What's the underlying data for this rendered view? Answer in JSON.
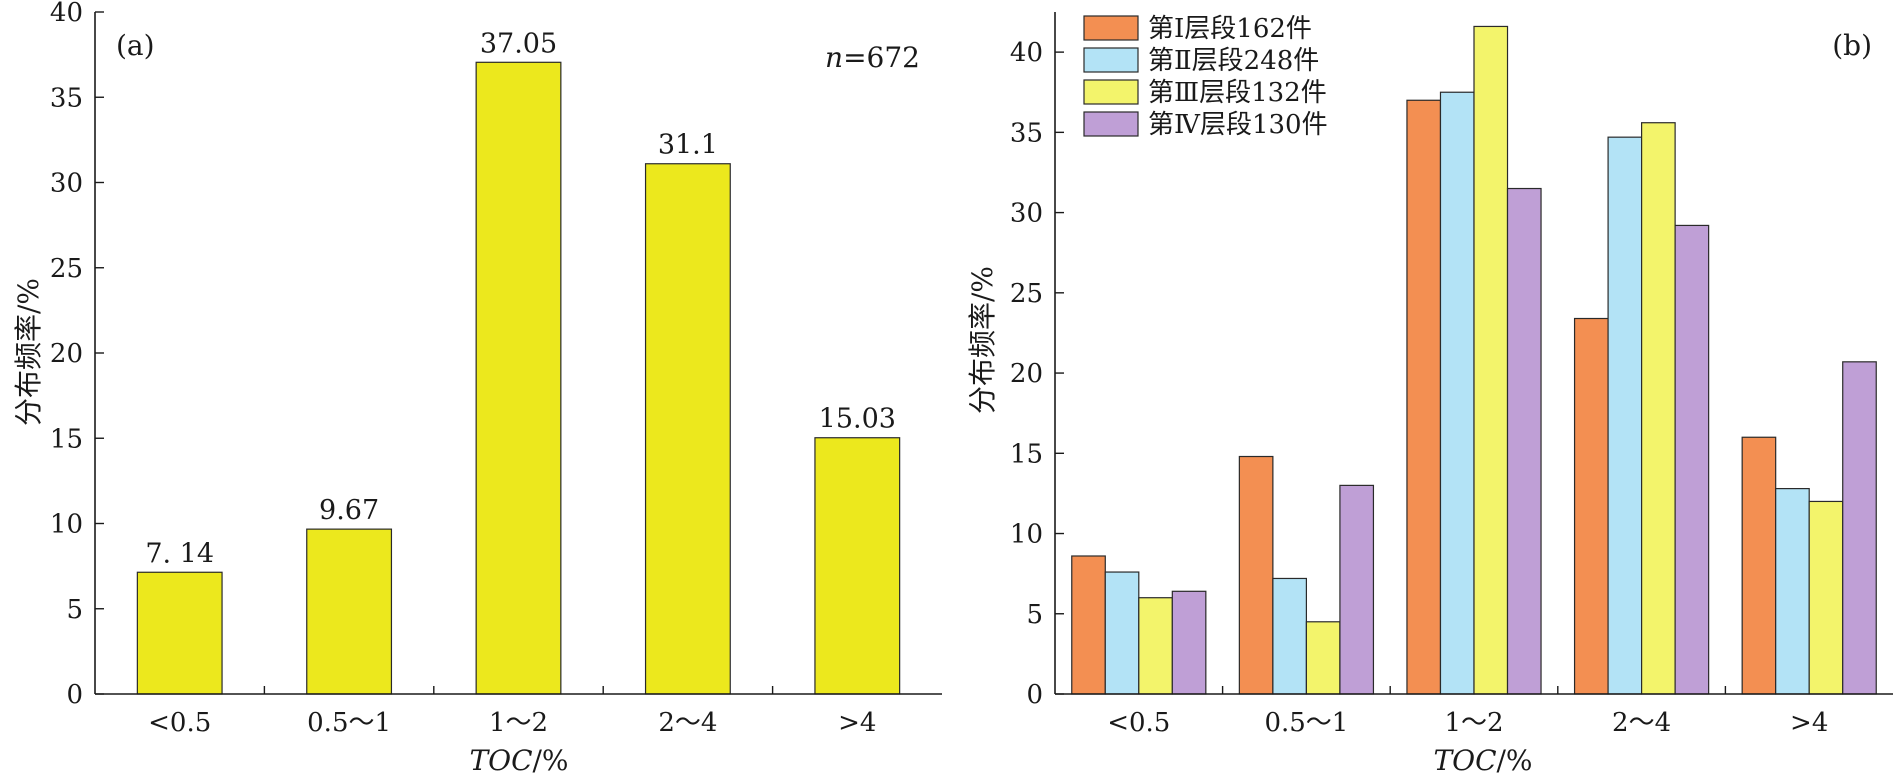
{
  "chart_data": [
    {
      "type": "bar",
      "panel_label": "(a)",
      "annotation": "n=672",
      "annotation_italic": "n",
      "annotation_rest": "=672",
      "categories": [
        "<0.5",
        "0.5～1",
        "1～2",
        "2～4",
        ">4"
      ],
      "values": [
        7.14,
        9.67,
        37.05,
        31.1,
        15.03
      ],
      "data_labels": [
        "7. 14",
        "9.67",
        "37.05",
        "31.1",
        "15.03"
      ],
      "bar_color": "#ece81d",
      "xlabel_italic": "TOC",
      "xlabel_rest": "/%",
      "ylabel": "分布频率/%",
      "ylim": [
        0,
        40
      ],
      "yticks": [
        0,
        5,
        10,
        15,
        20,
        25,
        30,
        35,
        40
      ],
      "grid": false
    },
    {
      "type": "bar",
      "panel_label": "(b)",
      "categories": [
        "<0.5",
        "0.5～1",
        "1～2",
        "2～4",
        ">4"
      ],
      "series": [
        {
          "name": "第Ⅰ层段162件",
          "color": "#f38f52",
          "values": [
            8.6,
            14.8,
            37.0,
            23.4,
            16.0
          ]
        },
        {
          "name": "第Ⅱ层段248件",
          "color": "#b3e3f6",
          "values": [
            7.6,
            7.2,
            37.5,
            34.7,
            12.8
          ]
        },
        {
          "name": "第Ⅲ层段132件",
          "color": "#f3f46b",
          "values": [
            6.0,
            4.5,
            41.6,
            35.6,
            12.0
          ]
        },
        {
          "name": "第Ⅳ层段130件",
          "color": "#bf9fd6",
          "values": [
            6.4,
            13.0,
            31.5,
            29.2,
            20.7
          ]
        }
      ],
      "xlabel_italic": "TOC",
      "xlabel_rest": "/%",
      "ylabel": "分布频率/%",
      "ylim": [
        0,
        42.5
      ],
      "yticks": [
        0,
        5,
        10,
        15,
        20,
        25,
        30,
        35,
        40
      ],
      "legend_position": "top-left",
      "grid": false
    }
  ]
}
